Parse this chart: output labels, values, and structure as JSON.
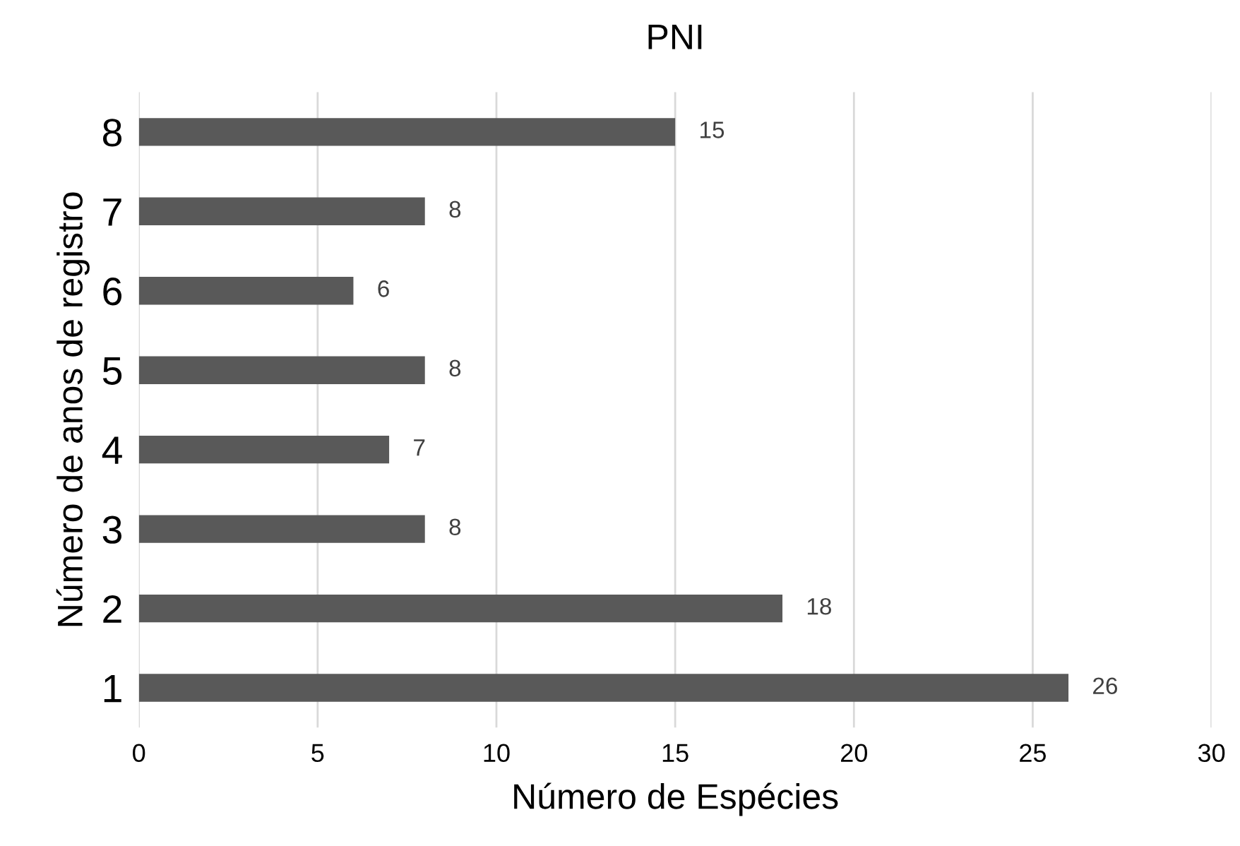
{
  "chart_data": {
    "type": "bar",
    "orientation": "horizontal",
    "title": "PNI",
    "xlabel": "Número de Espécies",
    "ylabel": "Número de anos de registro",
    "categories": [
      "8",
      "7",
      "6",
      "5",
      "4",
      "3",
      "2",
      "1"
    ],
    "values": [
      15,
      8,
      6,
      8,
      7,
      8,
      18,
      26
    ],
    "color": "#595959",
    "data_labels": true,
    "xlim": [
      0,
      30
    ],
    "xticks": [
      0,
      5,
      10,
      15,
      20,
      25,
      30
    ],
    "grid": "x"
  }
}
